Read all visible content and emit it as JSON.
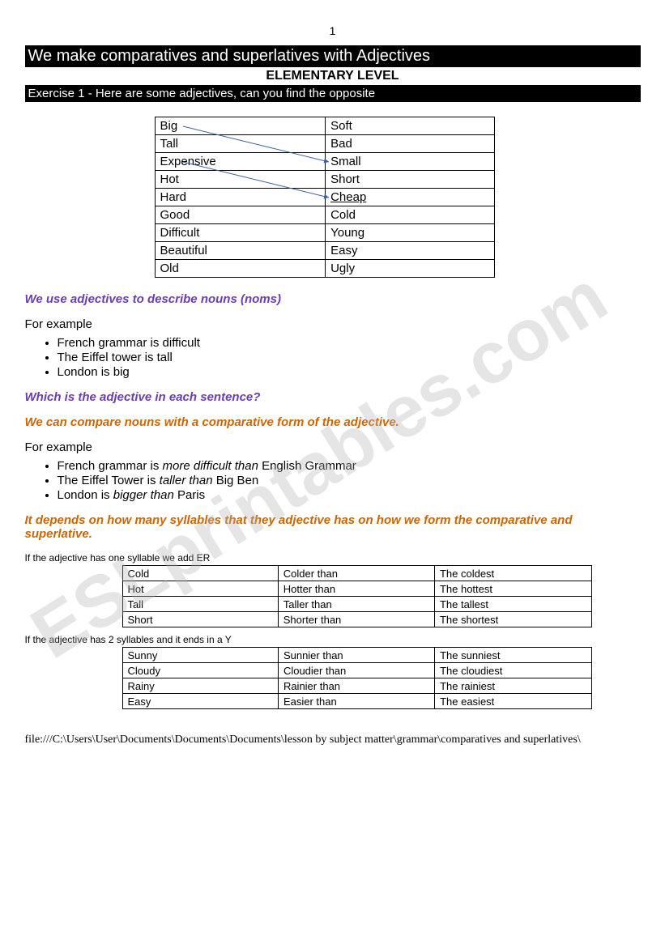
{
  "colors": {
    "black": "#000000",
    "white": "#ffffff",
    "purple": "#6a3db3",
    "orange": "#cc6600",
    "arrow": "#3a5fa0",
    "watermark": "rgba(180,180,180,0.35)"
  },
  "pageNumber": "1",
  "titleBar": "We make comparatives and superlatives with Adjectives",
  "subtitle": "ELEMENTARY LEVEL",
  "exerciseBar": "Exercise 1 - Here are some adjectives, can you find the opposite",
  "adjectiveTable": {
    "rows": [
      [
        "Big",
        "Soft"
      ],
      [
        "Tall",
        "Bad"
      ],
      [
        "Expensive",
        "Small"
      ],
      [
        "Hot",
        "Short"
      ],
      [
        "Hard",
        "Cheap"
      ],
      [
        "Good",
        "Cold"
      ],
      [
        "Difficult",
        "Young"
      ],
      [
        "Beautiful",
        "Easy"
      ],
      [
        "Old",
        "Ugly"
      ]
    ],
    "underlineCell": [
      4,
      1
    ],
    "arrows": [
      {
        "from": [
          0,
          0
        ],
        "to": [
          2,
          1
        ]
      },
      {
        "from": [
          2,
          0
        ],
        "to": [
          4,
          1
        ]
      }
    ]
  },
  "purpleLine1": "We use adjectives to describe nouns (noms)",
  "forExampleLabel": "For example",
  "examples1": [
    "French grammar is difficult",
    "The Eiffel tower is tall",
    "London is big"
  ],
  "purpleLine2": "Which is the adjective in each sentence?",
  "orangeLine1": "We can compare nouns with a comparative form of the adjective.",
  "examples2": [
    {
      "pre": "French grammar is ",
      "mid": "more difficult than",
      "post": " English Grammar"
    },
    {
      "pre": "The Eiffel Tower is ",
      "mid": "taller than",
      "post": " Big Ben"
    },
    {
      "pre": "London is ",
      "mid": "bigger than",
      "post": " Paris"
    }
  ],
  "orangeLine2": "It depends on how many syllables that they adjective has on how we form the comparative and superlative.",
  "rule1Text": "If the adjective has one syllable we add ER",
  "table1Syllable": [
    [
      "Cold",
      "Colder than",
      "The coldest"
    ],
    [
      "Hot",
      "Hotter than",
      "The hottest"
    ],
    [
      "Tall",
      "Taller than",
      "The tallest"
    ],
    [
      "Short",
      "Shorter than",
      "The shortest"
    ]
  ],
  "rule2Text": "If the adjective has 2 syllables and it ends in a Y",
  "table2Syllable": [
    [
      "Sunny",
      "Sunnier than",
      "The sunniest"
    ],
    [
      "Cloudy",
      "Cloudier than",
      "The cloudiest"
    ],
    [
      "Rainy",
      "Rainier than",
      "The rainiest"
    ],
    [
      "Easy",
      "Easier than",
      "The easiest"
    ]
  ],
  "footerPath": "file:///C:\\Users\\User\\Documents\\Documents\\Documents\\lesson by subject matter\\grammar\\comparatives and superlatives\\",
  "watermarkText": "ESLprintables.com"
}
